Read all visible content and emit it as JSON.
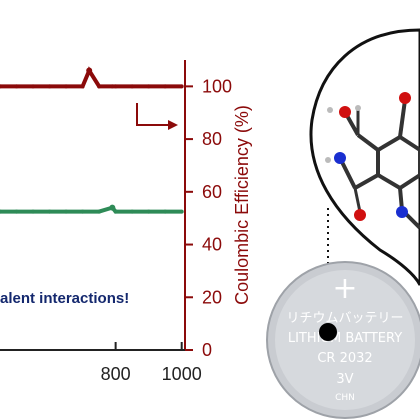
{
  "chart_data": {
    "type": "scatter",
    "xlim": [
      450,
      1010
    ],
    "ylim": [
      0,
      110
    ],
    "x_ticks": [
      800,
      1000
    ],
    "y_ticks": [
      0,
      20,
      40,
      60,
      80,
      100
    ],
    "x_tick_labels": [
      "800",
      "1000"
    ],
    "y_tick_labels": [
      "0",
      "20",
      "40",
      "60",
      "80",
      "100"
    ],
    "ylabel": "Coulombic Efficiency (%)",
    "xlabel": "",
    "grid": false,
    "series": [
      {
        "axis": "right",
        "color": "#8b0a0a",
        "x": [
          450,
          500,
          550,
          600,
          650,
          700,
          720,
          750,
          790,
          800,
          850,
          900,
          950,
          1000
        ],
        "y": [
          100,
          100,
          100,
          100,
          100,
          100,
          106,
          100,
          100,
          100,
          100,
          100,
          100,
          100
        ]
      },
      {
        "axis": "left",
        "color": "#2e8b57",
        "x": [
          450,
          500,
          550,
          600,
          650,
          700,
          750,
          790,
          800,
          850,
          900,
          950,
          1000
        ],
        "y": [
          52.5,
          52.5,
          52.5,
          52.5,
          52.5,
          52.5,
          52.5,
          54,
          52.5,
          52.5,
          52.5,
          52.5,
          52.5
        ]
      }
    ],
    "annotations": [
      "alent interactions!"
    ]
  },
  "battery": {
    "line1": "リチウムバッテリー",
    "line2": "LITHIUM BATTERY",
    "line3": "CR 2032",
    "line4": "3V",
    "line5": "CHN"
  },
  "colors": {
    "ce_axis": "#8b0a0a",
    "capacity_series": "#2e8b57",
    "annotation": "#14286e"
  }
}
